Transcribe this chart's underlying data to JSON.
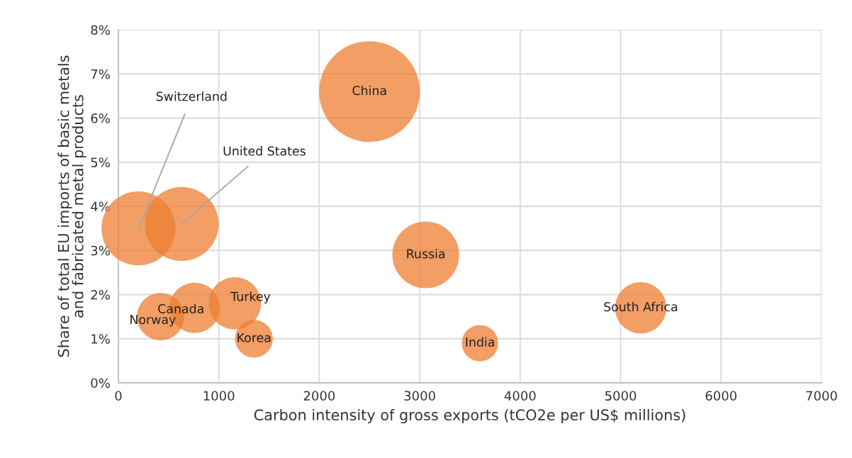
{
  "chart_data": {
    "type": "bubble",
    "xlabel": "Carbon intensity of gross exports (tCO2e per US$ millions)",
    "ylabel": "Share of total EU imports of basic metals\nand fabricated metal products",
    "series": [
      {
        "color": "#ed7d31",
        "x": [
          2500,
          3060,
          5200,
          3600,
          200,
          630,
          420,
          760,
          1160,
          1350
        ],
        "values": [
          6.6,
          2.9,
          1.7,
          0.9,
          3.5,
          3.6,
          1.5,
          1.7,
          1.8,
          1.0
        ],
        "sizes": [
          1,
          0.44,
          0.26,
          0.13,
          0.54,
          0.54,
          0.22,
          0.25,
          0.27,
          0.14
        ]
      }
    ],
    "annotations": [
      {
        "text": "China",
        "x": 2500,
        "y": 6.6
      },
      {
        "text": "Russia",
        "x": 3060,
        "y": 2.9
      },
      {
        "text": "South Africa",
        "x": 5200,
        "y": 1.7
      },
      {
        "text": "India",
        "x": 3600,
        "y": 0.9
      },
      {
        "text": "Switzerland",
        "x": 200,
        "y": 3.5
      },
      {
        "text": "United States",
        "x": 630,
        "y": 3.6
      },
      {
        "text": "Norway",
        "x": 420,
        "y": 1.5
      },
      {
        "text": "Canada",
        "x": 760,
        "y": 1.7
      },
      {
        "text": "Turkey",
        "x": 1160,
        "y": 1.8
      },
      {
        "text": "Korea",
        "x": 1350,
        "y": 1.0
      }
    ],
    "xlim": [
      0,
      7000
    ],
    "xticks": [
      0,
      1000,
      2000,
      3000,
      4000,
      5000,
      6000,
      7000
    ],
    "ylim": [
      0,
      8
    ],
    "yticks": [
      {
        "value": 0,
        "label": "0%"
      },
      {
        "value": 1,
        "label": "1%"
      },
      {
        "value": 2,
        "label": "2%"
      },
      {
        "value": 3,
        "label": "3%"
      },
      {
        "value": 4,
        "label": "4%"
      },
      {
        "value": 5,
        "label": "5%"
      },
      {
        "value": 6,
        "label": "6%"
      },
      {
        "value": 7,
        "label": "7%"
      },
      {
        "value": 8,
        "label": "8%"
      }
    ],
    "grid": true
  }
}
